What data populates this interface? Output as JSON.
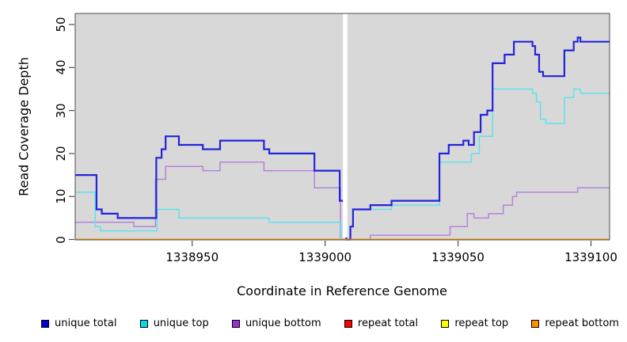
{
  "chart_data": {
    "type": "line",
    "subtype": "step-coverage-plot",
    "title": "",
    "xlabel": "Coordinate in Reference Genome",
    "ylabel": "Read Coverage Depth",
    "xlim": [
      1338906,
      1339107
    ],
    "ylim": [
      0,
      50
    ],
    "x_ticks": [
      1338950,
      1339000,
      1339050,
      1339100
    ],
    "y_ticks": [
      0,
      10,
      20,
      30,
      40,
      50
    ],
    "grid": false,
    "plot_background": "#d8d8d8",
    "masked_region": {
      "x_start": 1339006.7,
      "x_end": 1339008.4,
      "color": "#ffffff"
    },
    "legend_position": "bottom",
    "series": [
      {
        "name": "repeat total",
        "legend_color": "#ff0000",
        "line_color": "#ff0000",
        "width": 1.4,
        "points": [
          [
            1338906,
            0
          ],
          [
            1339107,
            0
          ]
        ]
      },
      {
        "name": "repeat top",
        "legend_color": "#ffff00",
        "line_color": "#ffff00",
        "width": 1.4,
        "points": [
          [
            1338906,
            0
          ],
          [
            1339107,
            0
          ]
        ]
      },
      {
        "name": "unique bottom",
        "legend_color": "#9b2fd6",
        "line_color": "#b683dd",
        "width": 1.5,
        "points": [
          [
            1338906,
            4
          ],
          [
            1338928,
            3
          ],
          [
            1338936.2,
            14
          ],
          [
            1338940,
            17
          ],
          [
            1338954,
            16
          ],
          [
            1338960.5,
            18
          ],
          [
            1338977,
            16
          ],
          [
            1338996,
            12
          ],
          [
            1339005.8,
            0
          ],
          [
            1339017,
            1
          ],
          [
            1339047,
            3
          ],
          [
            1339053.5,
            6
          ],
          [
            1339056,
            5
          ],
          [
            1339061.5,
            6
          ],
          [
            1339067,
            8
          ],
          [
            1339070.5,
            10
          ],
          [
            1339072,
            11
          ],
          [
            1339095,
            12
          ],
          [
            1339107,
            12
          ]
        ]
      },
      {
        "name": "unique top",
        "legend_color": "#00dcec",
        "line_color": "#5fe2ec",
        "width": 1.5,
        "points": [
          [
            1338906,
            11
          ],
          [
            1338913.5,
            3
          ],
          [
            1338915.5,
            2
          ],
          [
            1338936.8,
            7
          ],
          [
            1338945,
            5
          ],
          [
            1338979,
            4
          ],
          [
            1339006,
            0
          ],
          [
            1339009.5,
            3
          ],
          [
            1339010.5,
            7
          ],
          [
            1339025,
            8
          ],
          [
            1339043,
            18
          ],
          [
            1339055,
            20
          ],
          [
            1339058,
            24
          ],
          [
            1339063,
            35
          ],
          [
            1339078,
            34
          ],
          [
            1339079.5,
            32
          ],
          [
            1339081,
            28
          ],
          [
            1339083,
            27
          ],
          [
            1339090,
            33
          ],
          [
            1339093.5,
            35
          ],
          [
            1339096,
            34
          ],
          [
            1339107,
            34
          ]
        ]
      },
      {
        "name": "unique total",
        "legend_color": "#0000cd",
        "line_color": "#2323dd",
        "width": 2.2,
        "points": [
          [
            1338906,
            15
          ],
          [
            1338914,
            7
          ],
          [
            1338916,
            6
          ],
          [
            1338922,
            5
          ],
          [
            1338936.5,
            19
          ],
          [
            1338938.5,
            21
          ],
          [
            1338940,
            24
          ],
          [
            1338945,
            22
          ],
          [
            1338954,
            21
          ],
          [
            1338960.5,
            23
          ],
          [
            1338977,
            21
          ],
          [
            1338979,
            20
          ],
          [
            1338996,
            16
          ],
          [
            1339005.5,
            9
          ],
          [
            1339008,
            0
          ],
          [
            1339009.5,
            3
          ],
          [
            1339010.5,
            7
          ],
          [
            1339017,
            8
          ],
          [
            1339025,
            9
          ],
          [
            1339043,
            20
          ],
          [
            1339046.5,
            22
          ],
          [
            1339052,
            23
          ],
          [
            1339054,
            22
          ],
          [
            1339056,
            25
          ],
          [
            1339058.5,
            29
          ],
          [
            1339061,
            30
          ],
          [
            1339063,
            41
          ],
          [
            1339067.5,
            43
          ],
          [
            1339071,
            46
          ],
          [
            1339078,
            45
          ],
          [
            1339079,
            43
          ],
          [
            1339080.5,
            39
          ],
          [
            1339082,
            38
          ],
          [
            1339090,
            44
          ],
          [
            1339093.5,
            46
          ],
          [
            1339095,
            47
          ],
          [
            1339096,
            46
          ],
          [
            1339107,
            46
          ]
        ]
      },
      {
        "name": "repeat bottom",
        "legend_color": "#ff9100",
        "line_color": "#ff9100",
        "width": 1.8,
        "points": [
          [
            1338906,
            0
          ],
          [
            1339107,
            0
          ]
        ]
      }
    ],
    "legend_order": [
      "unique total",
      "unique top",
      "unique bottom",
      "repeat total",
      "repeat top",
      "repeat bottom"
    ],
    "legend_colors": {
      "unique total": "#0000cd",
      "unique top": "#00dcec",
      "unique bottom": "#9b2fd6",
      "repeat total": "#ff0000",
      "repeat top": "#ffff00",
      "repeat bottom": "#ff9100"
    }
  },
  "labels": {
    "x_axis_title": "Coordinate in Reference Genome",
    "y_axis_title": "Read Coverage Depth"
  }
}
